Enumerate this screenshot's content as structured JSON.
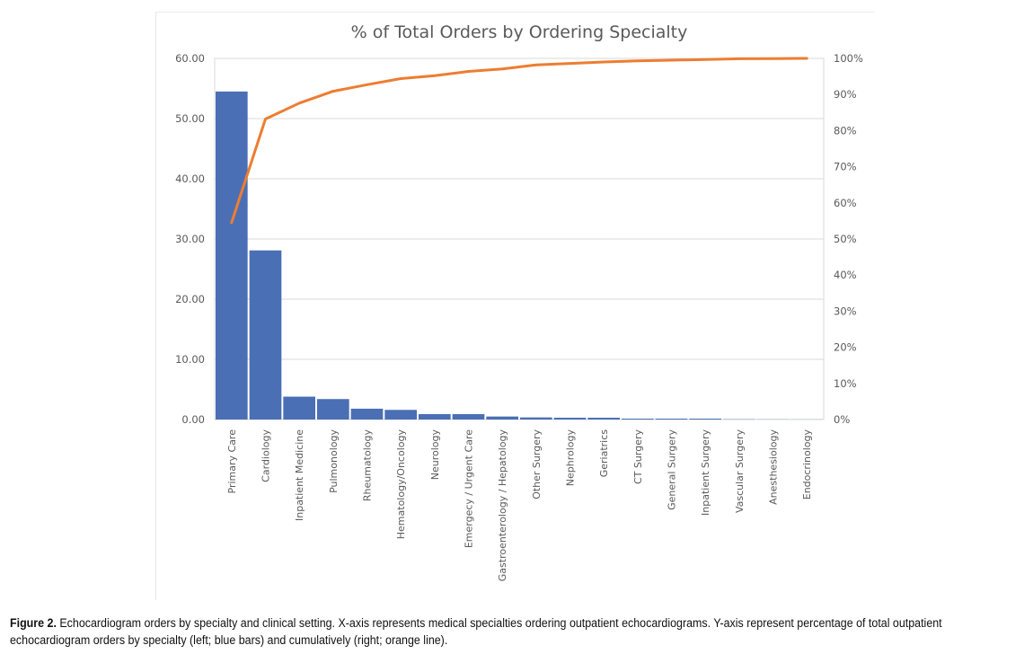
{
  "chart_data": {
    "type": "bar",
    "title": "% of Total Orders by Ordering Specialty",
    "xlabel": "",
    "ylabel": "",
    "y2label": "",
    "categories": [
      "Primary Care",
      "Cardiology",
      "Inpatient Medicine",
      "Pulmonology",
      "Rheumatology",
      "Hematology/Oncology",
      "Neurology",
      "Emergecy / Urgent Care",
      "Gastroenterology / Hepatology",
      "Other Surgery",
      "Nephrology",
      "Geriatrics",
      "CT Surgery",
      "General Surgery",
      "Inpatient Surgery",
      "Vascular Surgery",
      "Anesthesiology",
      "Endocrinology"
    ],
    "series": [
      {
        "name": "% of total orders",
        "type": "bar",
        "axis": "left",
        "color": "#4a6fb5",
        "values": [
          54.5,
          28.1,
          3.8,
          3.4,
          1.8,
          1.6,
          0.9,
          0.9,
          0.5,
          0.35,
          0.3,
          0.3,
          0.15,
          0.15,
          0.15,
          0.05,
          0.03,
          0.02
        ]
      },
      {
        "name": "Cumulative %",
        "type": "line",
        "axis": "right",
        "color": "#ed7d31",
        "values": [
          54.5,
          83.2,
          87.6,
          90.9,
          92.7,
          94.4,
          95.2,
          96.4,
          97.1,
          98.2,
          98.6,
          99.0,
          99.3,
          99.5,
          99.7,
          99.9,
          99.95,
          100
        ]
      }
    ],
    "ylim": [
      0,
      60
    ],
    "yticks": [
      "0.00",
      "10.00",
      "20.00",
      "30.00",
      "40.00",
      "50.00",
      "60.00"
    ],
    "y2lim": [
      0,
      100
    ],
    "y2ticks": [
      "0%",
      "10%",
      "20%",
      "30%",
      "40%",
      "50%",
      "60%",
      "70%",
      "80%",
      "90%",
      "100%"
    ],
    "grid": true,
    "legend": "none"
  },
  "caption": {
    "label": "Figure 2.",
    "text": " Echocardiogram orders by specialty and clinical setting. X-axis represents medical specialties ordering outpatient echocardiograms. Y-axis represent percentage of total outpatient echocardiogram orders by specialty (left; blue bars) and cumulatively (right; orange line)."
  }
}
